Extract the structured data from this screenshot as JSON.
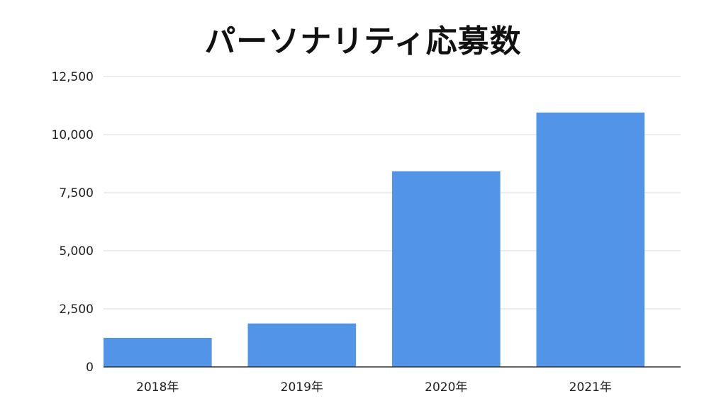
{
  "chart_data": {
    "type": "bar",
    "title": "パーソナリティ応募数",
    "categories": [
      "2018年",
      "2019年",
      "2020年",
      "2021年"
    ],
    "values": [
      1250,
      1870,
      8420,
      10950
    ],
    "ylim": [
      0,
      12500
    ],
    "yticks": [
      "0",
      "2,500",
      "5,000",
      "7,500",
      "10,000",
      "12,500"
    ],
    "ytick_values": [
      0,
      2500,
      5000,
      7500,
      10000,
      12500
    ],
    "grid": true,
    "bar_color": "#5294E8",
    "grid_color": "#D9D9D9",
    "axis_color": "#333333"
  }
}
